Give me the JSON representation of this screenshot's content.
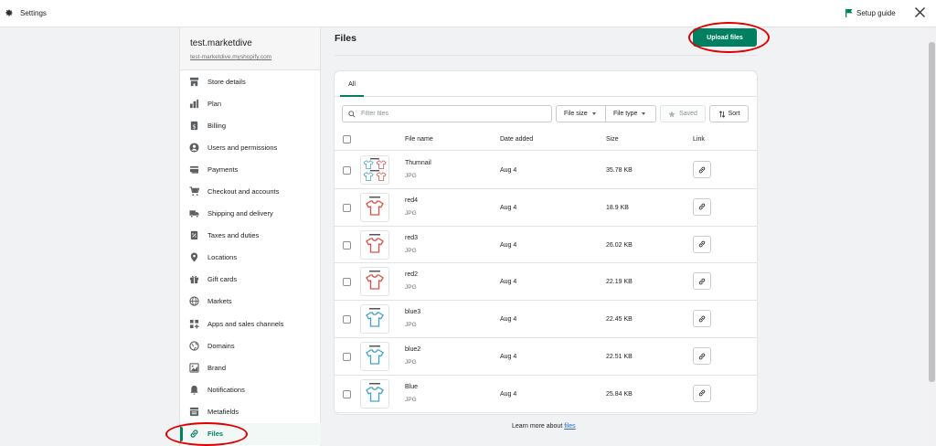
{
  "topbar": {
    "title": "Settings",
    "setup_guide": "Setup guide",
    "icons": {
      "settings": "gear-icon",
      "setup": "flag-icon",
      "close": "close-icon"
    }
  },
  "sidebar": {
    "store_name": "test.marketdive",
    "store_url": "test-marketdive.myshopify.com",
    "items": [
      {
        "label": "Store details",
        "icon": "store-icon"
      },
      {
        "label": "Plan",
        "icon": "plan-icon"
      },
      {
        "label": "Billing",
        "icon": "billing-icon"
      },
      {
        "label": "Users and permissions",
        "icon": "user-icon"
      },
      {
        "label": "Payments",
        "icon": "payments-icon"
      },
      {
        "label": "Checkout and accounts",
        "icon": "cart-icon"
      },
      {
        "label": "Shipping and delivery",
        "icon": "truck-icon"
      },
      {
        "label": "Taxes and duties",
        "icon": "tax-icon"
      },
      {
        "label": "Locations",
        "icon": "location-icon"
      },
      {
        "label": "Gift cards",
        "icon": "gift-icon"
      },
      {
        "label": "Markets",
        "icon": "globe-icon"
      },
      {
        "label": "Apps and sales channels",
        "icon": "apps-icon"
      },
      {
        "label": "Domains",
        "icon": "domains-icon"
      },
      {
        "label": "Brand",
        "icon": "brand-icon"
      },
      {
        "label": "Notifications",
        "icon": "bell-icon"
      },
      {
        "label": "Metafields",
        "icon": "metafields-icon"
      },
      {
        "label": "Files",
        "icon": "link-icon",
        "active": true
      }
    ]
  },
  "main": {
    "title": "Files",
    "upload_label": "Upload files",
    "tabs": [
      {
        "label": "All",
        "selected": true
      }
    ],
    "filter_placeholder": "Filter files",
    "file_size_label": "File size",
    "file_type_label": "File type",
    "saved_label": "Saved",
    "sort_label": "Sort",
    "columns": {
      "name": "File name",
      "date": "Date added",
      "size": "Size",
      "link": "Link"
    },
    "files": [
      {
        "name": "Thumnail",
        "type": "JPG",
        "date": "Aug 4",
        "size": "35.78 KB",
        "thumb": "mixed"
      },
      {
        "name": "red4",
        "type": "JPG",
        "date": "Aug 4",
        "size": "18.9 KB",
        "thumb": "red"
      },
      {
        "name": "red3",
        "type": "JPG",
        "date": "Aug 4",
        "size": "26.02 KB",
        "thumb": "red"
      },
      {
        "name": "red2",
        "type": "JPG",
        "date": "Aug 4",
        "size": "22.19 KB",
        "thumb": "red"
      },
      {
        "name": "blue3",
        "type": "JPG",
        "date": "Aug 4",
        "size": "22.45 KB",
        "thumb": "blue"
      },
      {
        "name": "blue2",
        "type": "JPG",
        "date": "Aug 4",
        "size": "22.51 KB",
        "thumb": "blue"
      },
      {
        "name": "Blue",
        "type": "JPG",
        "date": "Aug 4",
        "size": "25.84 KB",
        "thumb": "blue"
      }
    ],
    "footer_text": "Learn more about",
    "footer_link": "files"
  },
  "colors": {
    "accent": "#008060",
    "annotation": "#e00000",
    "link": "#2c6ecb",
    "shirt_red": "#d9544f",
    "shirt_blue": "#4aa3c8"
  }
}
